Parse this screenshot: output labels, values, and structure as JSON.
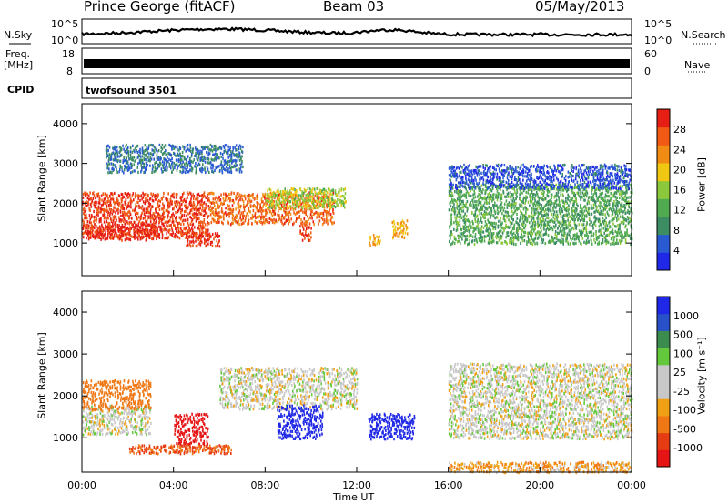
{
  "header": {
    "station": "Prince George (fitACF)",
    "beam": "Beam 03",
    "date": "05/May/2013"
  },
  "noise_panel": {
    "left_label": "N.Sky",
    "right_label": "N.Search",
    "left_ticks": [
      "10^5",
      "10^0"
    ],
    "right_ticks": [
      "10^5",
      "10^0"
    ]
  },
  "freq_panel": {
    "left_label_1": "Freq.",
    "left_label_2": "[MHz]",
    "left_ticks": [
      "18",
      "8"
    ],
    "right_label": "Nave",
    "right_ticks": [
      "60",
      "0"
    ]
  },
  "cpid_panel": {
    "label": "CPID",
    "value": "twofsound 3501"
  },
  "axes": {
    "ylabel": "Slant Range [km]",
    "xlabel": "Time UT",
    "y_ticks": [
      "1000",
      "2000",
      "3000",
      "4000"
    ],
    "x_ticks": [
      "00:00",
      "04:00",
      "08:00",
      "12:00",
      "16:00",
      "20:00",
      "00:00"
    ]
  },
  "colors": {
    "power_scale": [
      "#1e28e6",
      "#2a5ad2",
      "#3c8c64",
      "#50aa50",
      "#8cc83c",
      "#f0c814",
      "#f08c14",
      "#f05a14",
      "#e61e14"
    ],
    "velocity_scale": [
      "#1e28e6",
      "#2850c8",
      "#3c8c50",
      "#64c83c",
      "#c8c8c8",
      "#c8c8c8",
      "#f0a014",
      "#f07814",
      "#e63c14",
      "#e61414"
    ]
  },
  "chart_data": [
    {
      "type": "heatmap",
      "name": "power",
      "colorbar_label": "Power [dB]",
      "colorbar_ticks": [
        "4",
        "8",
        "12",
        "16",
        "20",
        "24",
        "28"
      ],
      "x_range_hours": [
        0,
        24
      ],
      "y_range_km": [
        180,
        4500
      ],
      "bands": [
        {
          "t0": 0,
          "t1": 5.5,
          "r0": 1150,
          "r1": 2300,
          "level": 26
        },
        {
          "t0": 0,
          "t1": 3.5,
          "r0": 1100,
          "r1": 1500,
          "level": 28
        },
        {
          "t0": 4.5,
          "t1": 6,
          "r0": 950,
          "r1": 1300,
          "level": 27
        },
        {
          "t0": 5.5,
          "t1": 11,
          "r0": 1500,
          "r1": 2300,
          "level": 24
        },
        {
          "t0": 8,
          "t1": 11.5,
          "r0": 1900,
          "r1": 2400,
          "level": 16
        },
        {
          "t0": 9.5,
          "t1": 10,
          "r0": 1100,
          "r1": 1500,
          "level": 26
        },
        {
          "t0": 12.5,
          "t1": 13,
          "r0": 950,
          "r1": 1250,
          "level": 20
        },
        {
          "t0": 13.5,
          "t1": 14.2,
          "r0": 1150,
          "r1": 1600,
          "level": 20
        },
        {
          "t0": 16,
          "t1": 24,
          "r0": 1000,
          "r1": 2500,
          "level": 12
        },
        {
          "t0": 16,
          "t1": 24,
          "r0": 2400,
          "r1": 3000,
          "level": 6
        },
        {
          "t0": 1,
          "t1": 7,
          "r0": 2800,
          "r1": 3500,
          "level": 8
        }
      ]
    },
    {
      "type": "heatmap",
      "name": "velocity",
      "colorbar_label": "Velocity [m s⁻¹]",
      "colorbar_ticks": [
        "1000",
        "500",
        "100",
        "25",
        "-25",
        "-100",
        "-500",
        "-1000"
      ],
      "x_range_hours": [
        0,
        24
      ],
      "y_range_km": [
        180,
        4500
      ],
      "bands": [
        {
          "t0": 0,
          "t1": 3,
          "r0": 1100,
          "r1": 1800,
          "level": 0
        },
        {
          "t0": 0,
          "t1": 3,
          "r0": 1700,
          "r1": 2400,
          "level": -200
        },
        {
          "t0": 4,
          "t1": 5.5,
          "r0": 850,
          "r1": 1600,
          "level": -1000
        },
        {
          "t0": 2,
          "t1": 6.5,
          "r0": 650,
          "r1": 850,
          "level": -300
        },
        {
          "t0": 6,
          "t1": 12,
          "r0": 1700,
          "r1": 2700,
          "level": 0
        },
        {
          "t0": 8.5,
          "t1": 10.5,
          "r0": 1000,
          "r1": 1800,
          "level": 800
        },
        {
          "t0": 12.5,
          "t1": 14.5,
          "r0": 1000,
          "r1": 1600,
          "level": 900
        },
        {
          "t0": 16,
          "t1": 24,
          "r0": 1000,
          "r1": 2800,
          "level": 0
        },
        {
          "t0": 16,
          "t1": 24,
          "r0": 200,
          "r1": 450,
          "level": -50
        }
      ]
    }
  ]
}
